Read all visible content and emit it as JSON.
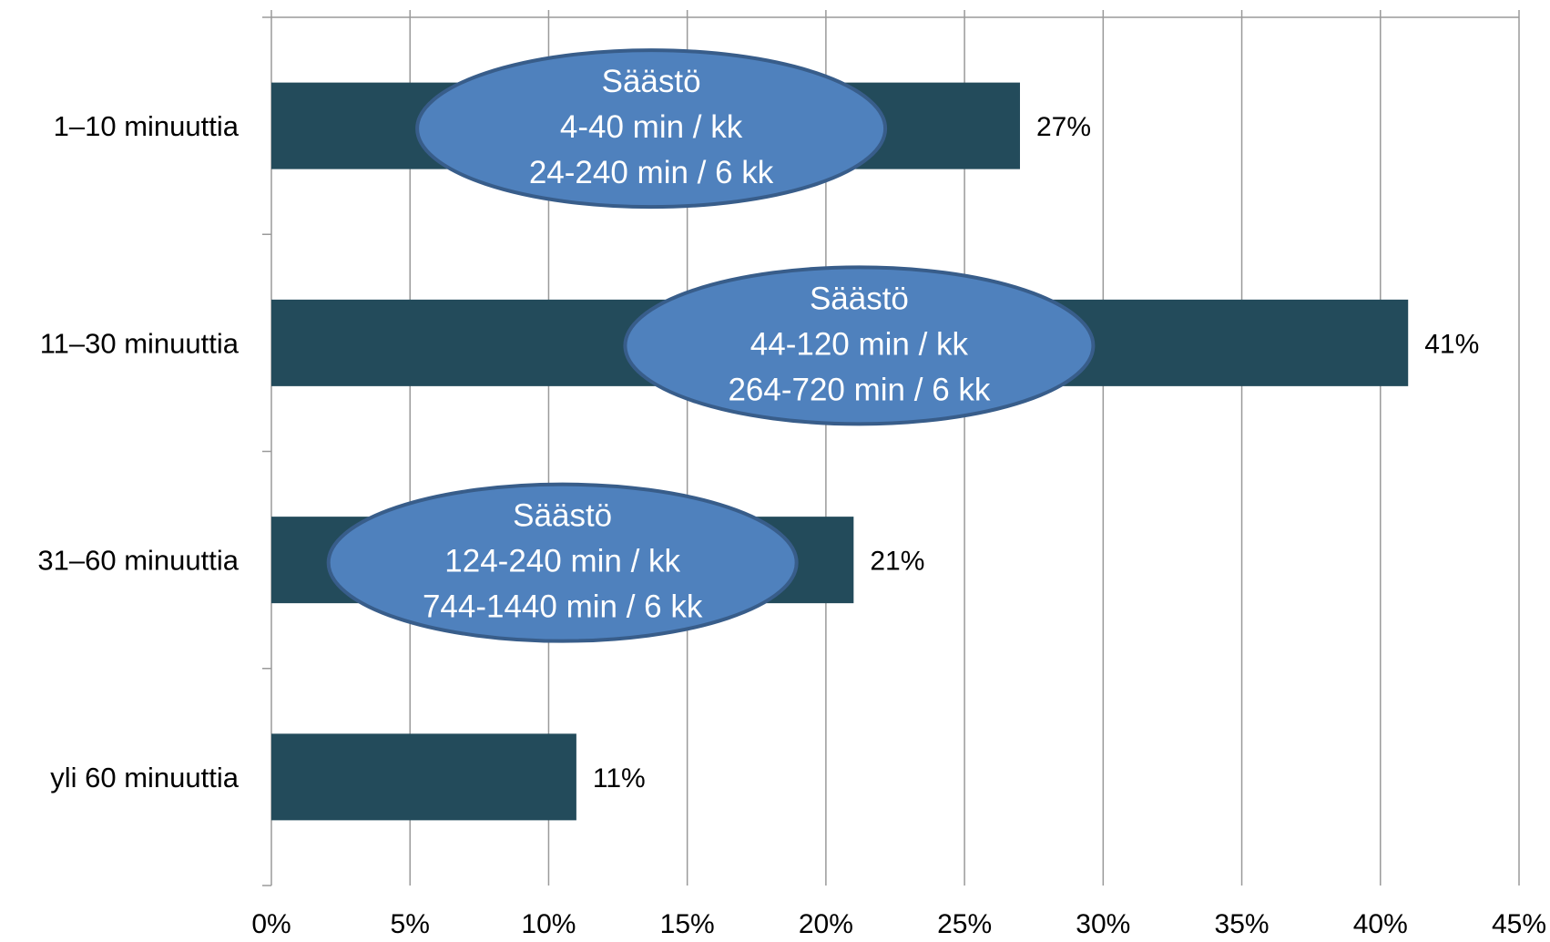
{
  "chart_data": {
    "type": "bar",
    "orientation": "horizontal",
    "categories": [
      "1–10 minuuttia",
      "11–30 minuuttia",
      "31–60 minuuttia",
      "yli 60 minuuttia"
    ],
    "values": [
      27,
      41,
      21,
      11
    ],
    "value_labels": [
      "27%",
      "41%",
      "21%",
      "11%"
    ],
    "xlim": [
      0,
      45
    ],
    "xticks": [
      0,
      5,
      10,
      15,
      20,
      25,
      30,
      35,
      40,
      45
    ],
    "xtick_labels": [
      "0%",
      "5%",
      "10%",
      "15%",
      "20%",
      "25%",
      "30%",
      "35%",
      "40%",
      "45%"
    ],
    "grid": true,
    "title": "",
    "xlabel": "",
    "ylabel": "",
    "colors": {
      "bar": "#234b5b",
      "grid": "#9a9a9a",
      "annotation_fill": "#4f81bd",
      "annotation_stroke": "#385d8a",
      "annotation_text": "#ffffff"
    },
    "annotations": [
      {
        "category_index": 0,
        "center_value": 13.7,
        "lines": [
          "Säästö",
          "4-40 min / kk",
          "24-240 min / 6 kk"
        ]
      },
      {
        "category_index": 1,
        "center_value": 21.2,
        "lines": [
          "Säästö",
          "44-120 min / kk",
          "264-720 min / 6 kk"
        ]
      },
      {
        "category_index": 2,
        "center_value": 10.5,
        "lines": [
          "Säästö",
          "124-240 min / kk",
          "744-1440 min / 6 kk"
        ]
      }
    ]
  }
}
